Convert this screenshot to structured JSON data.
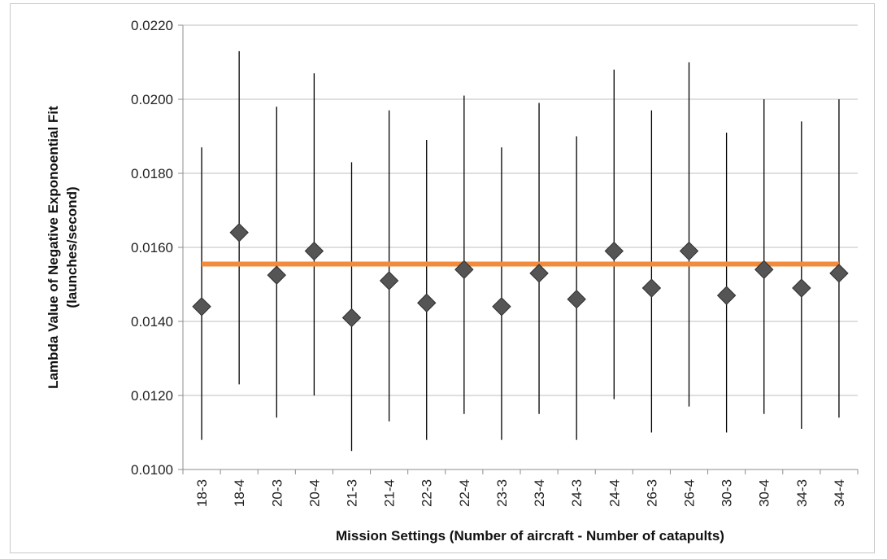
{
  "chart_data": {
    "type": "scatter",
    "title": "",
    "xlabel": "Mission Settings (Number of aircraft - Number of catapults)",
    "ylabel_lines": [
      "Lambda Value of Negative Exponoential Fit",
      "(launches/second)"
    ],
    "categories": [
      "18-3",
      "18-4",
      "20-3",
      "20-4",
      "21-3",
      "21-4",
      "22-3",
      "22-4",
      "23-3",
      "23-4",
      "24-3",
      "24-4",
      "26-3",
      "26-4",
      "30-3",
      "30-4",
      "34-3",
      "34-4"
    ],
    "series": [
      {
        "values": [
          0.0144,
          0.0164,
          0.01525,
          0.0159,
          0.0141,
          0.0151,
          0.0145,
          0.0154,
          0.0144,
          0.0153,
          0.0146,
          0.0159,
          0.0149,
          0.0159,
          0.0147,
          0.0154,
          0.0149,
          0.0153
        ],
        "error_low": [
          0.0108,
          0.0123,
          0.0114,
          0.012,
          0.0105,
          0.0113,
          0.0108,
          0.0115,
          0.0108,
          0.0115,
          0.0108,
          0.0119,
          0.011,
          0.0117,
          0.011,
          0.0115,
          0.0111,
          0.0114
        ],
        "error_high": [
          0.0187,
          0.0213,
          0.0198,
          0.0207,
          0.0183,
          0.0197,
          0.0189,
          0.0201,
          0.0187,
          0.0199,
          0.019,
          0.0208,
          0.0197,
          0.021,
          0.0191,
          0.02,
          0.0194,
          0.02
        ],
        "color": "#555555"
      }
    ],
    "reference_line": {
      "value": 0.01555,
      "color": "#f28c3c"
    },
    "ylim": [
      0.01,
      0.022
    ],
    "yticks": [
      "0.0100",
      "0.0120",
      "0.0140",
      "0.0160",
      "0.0180",
      "0.0200",
      "0.0220"
    ],
    "ytick_values": [
      0.01,
      0.012,
      0.014,
      0.016,
      0.018,
      0.02,
      0.022
    ],
    "grid": true,
    "gridline_color": "#bfbfbf"
  }
}
